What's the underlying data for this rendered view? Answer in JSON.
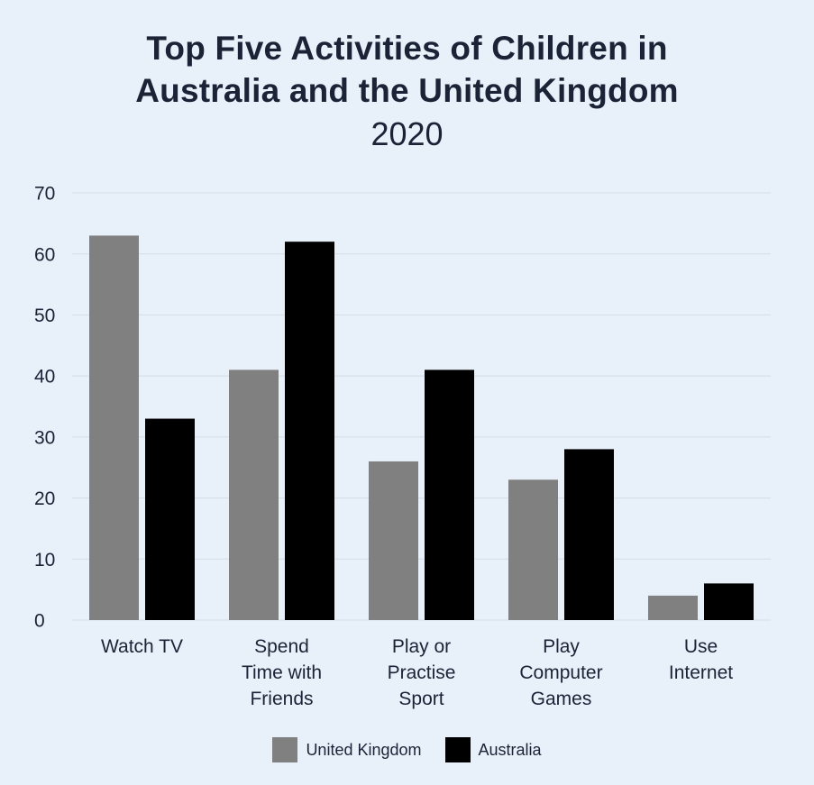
{
  "chart_data": {
    "type": "bar",
    "title_lines": [
      "Top Five Activities of Children in",
      "Australia and the United Kingdom"
    ],
    "subtitle": "2020",
    "xlabel": "",
    "ylabel": "",
    "ylim": [
      0,
      70
    ],
    "yticks": [
      0,
      10,
      20,
      30,
      40,
      50,
      60,
      70
    ],
    "grid": true,
    "legend_position": "bottom-center",
    "categories": [
      [
        "Watch TV"
      ],
      [
        "Spend",
        "Time with",
        "Friends"
      ],
      [
        "Play or",
        "Practise",
        "Sport"
      ],
      [
        "Play",
        "Computer",
        "Games"
      ],
      [
        "Use",
        "Internet"
      ]
    ],
    "series": [
      {
        "name": "United Kingdom",
        "color": "#808080",
        "values": [
          63,
          41,
          26,
          23,
          4
        ]
      },
      {
        "name": "Australia",
        "color": "#000000",
        "values": [
          33,
          62,
          41,
          28,
          6
        ]
      }
    ]
  }
}
